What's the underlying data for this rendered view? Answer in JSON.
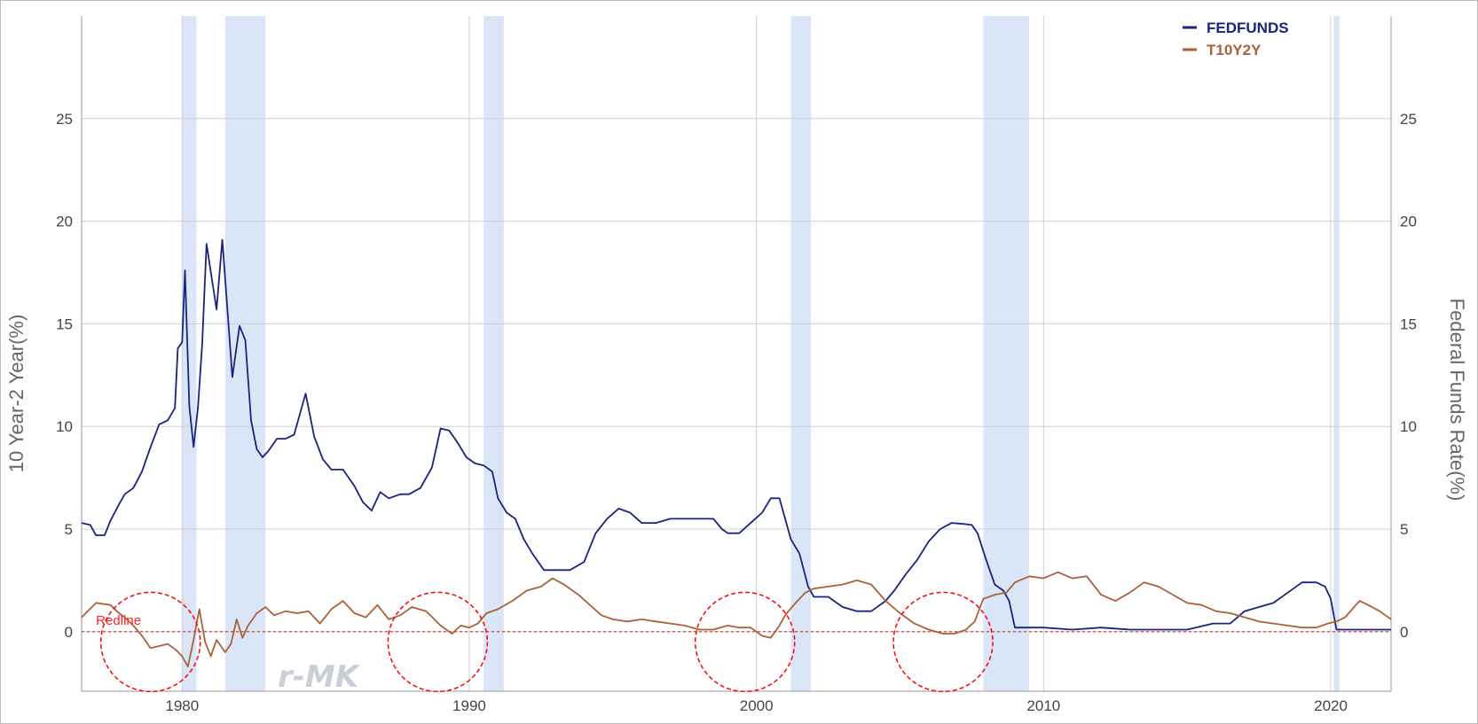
{
  "chart_data": {
    "type": "line",
    "title": "",
    "ylabel_left": "10 Year-2 Year(%)",
    "ylabel_right": "Federal Funds Rate(%)",
    "xlim": [
      1976.5,
      2022.1
    ],
    "ylim": [
      -2.9,
      30
    ],
    "y_ticks": [
      0,
      5,
      10,
      15,
      20,
      25
    ],
    "x_ticks": [
      1980,
      1990,
      2000,
      2010,
      2020
    ],
    "grid": true,
    "legend_position": "top-right",
    "recessions": [
      [
        1980.0,
        1980.5
      ],
      [
        1981.5,
        1982.9
      ],
      [
        1990.5,
        1991.2
      ],
      [
        2001.2,
        2001.9
      ],
      [
        2007.9,
        2009.5
      ],
      [
        2020.1,
        2020.3
      ]
    ],
    "series": [
      {
        "name": "FEDFUNDS",
        "color": "#1a237e",
        "x": [
          1976.5,
          1976.8,
          1977.0,
          1977.3,
          1977.5,
          1977.8,
          1978.0,
          1978.3,
          1978.6,
          1978.9,
          1979.2,
          1979.5,
          1979.75,
          1979.85,
          1980.0,
          1980.1,
          1980.25,
          1980.4,
          1980.55,
          1980.7,
          1980.85,
          1981.0,
          1981.2,
          1981.4,
          1981.55,
          1981.75,
          1982.0,
          1982.2,
          1982.4,
          1982.6,
          1982.8,
          1983.0,
          1983.3,
          1983.6,
          1983.9,
          1984.3,
          1984.6,
          1984.9,
          1985.2,
          1985.6,
          1986.0,
          1986.3,
          1986.6,
          1986.9,
          1987.2,
          1987.6,
          1987.9,
          1988.3,
          1988.7,
          1989.0,
          1989.3,
          1989.6,
          1989.9,
          1990.2,
          1990.5,
          1990.8,
          1991.0,
          1991.3,
          1991.6,
          1991.9,
          1992.2,
          1992.6,
          1993.0,
          1993.5,
          1994.0,
          1994.4,
          1994.8,
          1995.2,
          1995.6,
          1996.0,
          1996.5,
          1997.0,
          1997.5,
          1998.0,
          1998.5,
          1998.8,
          1999.0,
          1999.4,
          1999.8,
          2000.2,
          2000.5,
          2000.8,
          2001.0,
          2001.2,
          2001.5,
          2001.8,
          2002.0,
          2002.5,
          2003.0,
          2003.5,
          2004.0,
          2004.5,
          2004.8,
          2005.2,
          2005.6,
          2006.0,
          2006.4,
          2006.8,
          2007.2,
          2007.5,
          2007.7,
          2008.0,
          2008.3,
          2008.6,
          2008.8,
          2009.0,
          2009.5,
          2010.0,
          2011.0,
          2012.0,
          2013.0,
          2014.0,
          2015.0,
          2015.9,
          2016.5,
          2017.0,
          2017.5,
          2018.0,
          2018.5,
          2019.0,
          2019.5,
          2019.8,
          2020.0,
          2020.2,
          2020.4,
          2021.0,
          2021.5,
          2022.1
        ],
        "values": [
          5.3,
          5.2,
          4.7,
          4.7,
          5.4,
          6.2,
          6.7,
          7.0,
          7.8,
          9.0,
          10.1,
          10.3,
          10.9,
          13.8,
          14.1,
          17.6,
          11.0,
          9.0,
          10.9,
          14.0,
          18.9,
          17.5,
          15.7,
          19.1,
          16.2,
          12.4,
          14.9,
          14.2,
          10.3,
          8.9,
          8.5,
          8.8,
          9.4,
          9.4,
          9.6,
          11.6,
          9.5,
          8.4,
          7.9,
          7.9,
          7.1,
          6.3,
          5.9,
          6.8,
          6.5,
          6.7,
          6.7,
          7.0,
          8.0,
          9.9,
          9.8,
          9.2,
          8.5,
          8.2,
          8.1,
          7.8,
          6.5,
          5.8,
          5.5,
          4.5,
          3.8,
          3.0,
          3.0,
          3.0,
          3.4,
          4.8,
          5.5,
          6.0,
          5.8,
          5.3,
          5.3,
          5.5,
          5.5,
          5.5,
          5.5,
          5.0,
          4.8,
          4.8,
          5.3,
          5.8,
          6.5,
          6.5,
          5.5,
          4.5,
          3.8,
          2.2,
          1.7,
          1.7,
          1.2,
          1.0,
          1.0,
          1.5,
          2.0,
          2.8,
          3.5,
          4.4,
          5.0,
          5.3,
          5.25,
          5.2,
          4.8,
          3.5,
          2.3,
          2.0,
          1.5,
          0.2,
          0.2,
          0.2,
          0.1,
          0.2,
          0.1,
          0.1,
          0.1,
          0.4,
          0.4,
          1.0,
          1.2,
          1.4,
          1.9,
          2.4,
          2.4,
          2.2,
          1.6,
          0.1,
          0.1,
          0.1,
          0.1,
          0.1
        ]
      },
      {
        "name": "T10Y2Y",
        "color": "#a8623a",
        "x": [
          1976.5,
          1977.0,
          1977.5,
          1977.8,
          1978.0,
          1978.3,
          1978.6,
          1978.9,
          1979.2,
          1979.5,
          1979.8,
          1980.0,
          1980.2,
          1980.4,
          1980.6,
          1980.8,
          1981.0,
          1981.2,
          1981.5,
          1981.7,
          1981.9,
          1982.1,
          1982.3,
          1982.6,
          1982.9,
          1983.2,
          1983.6,
          1984.0,
          1984.4,
          1984.8,
          1985.2,
          1985.6,
          1986.0,
          1986.4,
          1986.8,
          1987.2,
          1987.6,
          1988.0,
          1988.5,
          1989.0,
          1989.4,
          1989.7,
          1990.0,
          1990.3,
          1990.6,
          1991.0,
          1991.5,
          1992.0,
          1992.5,
          1992.9,
          1993.3,
          1993.8,
          1994.2,
          1994.6,
          1995.0,
          1995.5,
          1996.0,
          1996.5,
          1997.0,
          1997.5,
          1998.0,
          1998.5,
          1999.0,
          1999.4,
          1999.8,
          2000.2,
          2000.5,
          2000.8,
          2001.0,
          2001.3,
          2001.7,
          2002.0,
          2002.5,
          2003.0,
          2003.5,
          2004.0,
          2004.5,
          2005.0,
          2005.5,
          2006.0,
          2006.5,
          2006.9,
          2007.3,
          2007.6,
          2007.9,
          2008.3,
          2008.7,
          2009.0,
          2009.5,
          2010.0,
          2010.5,
          2011.0,
          2011.5,
          2012.0,
          2012.5,
          2013.0,
          2013.5,
          2014.0,
          2014.5,
          2015.0,
          2015.5,
          2016.0,
          2016.5,
          2017.0,
          2017.5,
          2018.0,
          2018.5,
          2019.0,
          2019.5,
          2019.9,
          2020.2,
          2020.5,
          2021.0,
          2021.3,
          2021.7,
          2022.1
        ],
        "values": [
          0.7,
          1.4,
          1.3,
          0.9,
          0.7,
          0.3,
          -0.2,
          -0.8,
          -0.7,
          -0.6,
          -0.9,
          -1.2,
          -1.7,
          -0.4,
          1.1,
          -0.5,
          -1.2,
          -0.4,
          -1.0,
          -0.6,
          0.6,
          -0.3,
          0.3,
          0.9,
          1.2,
          0.8,
          1.0,
          0.9,
          1.0,
          0.4,
          1.1,
          1.5,
          0.9,
          0.7,
          1.3,
          0.6,
          0.8,
          1.2,
          1.0,
          0.3,
          -0.1,
          0.3,
          0.2,
          0.4,
          0.9,
          1.1,
          1.5,
          2.0,
          2.2,
          2.6,
          2.3,
          1.8,
          1.3,
          0.8,
          0.6,
          0.5,
          0.6,
          0.5,
          0.4,
          0.3,
          0.1,
          0.1,
          0.3,
          0.2,
          0.2,
          -0.2,
          -0.3,
          0.3,
          0.8,
          1.3,
          1.9,
          2.1,
          2.2,
          2.3,
          2.5,
          2.3,
          1.5,
          0.9,
          0.4,
          0.1,
          -0.1,
          -0.1,
          0.1,
          0.5,
          1.6,
          1.8,
          1.9,
          2.4,
          2.7,
          2.6,
          2.9,
          2.6,
          2.7,
          1.8,
          1.5,
          1.9,
          2.4,
          2.2,
          1.8,
          1.4,
          1.3,
          1.0,
          0.9,
          0.7,
          0.5,
          0.4,
          0.3,
          0.2,
          0.2,
          0.4,
          0.5,
          0.7,
          1.5,
          1.3,
          1.0,
          0.6
        ]
      }
    ],
    "redline": {
      "value": 0,
      "label": "Redline"
    },
    "circles": [
      {
        "cx": 1978.9,
        "cy": -0.5
      },
      {
        "cx": 1988.9,
        "cy": -0.5
      },
      {
        "cx": 1999.6,
        "cy": -0.5
      },
      {
        "cx": 2006.5,
        "cy": -0.5
      }
    ]
  },
  "watermark": "r-MK",
  "colors": {
    "recession_band": "#dae6f7",
    "grid": "#cfcfcf",
    "axis": "#999999",
    "circle": "#ff0000"
  }
}
